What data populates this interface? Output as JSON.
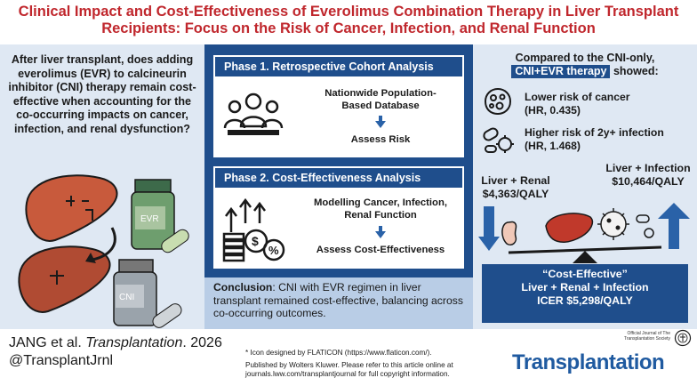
{
  "title": {
    "line1": "Clinical Impact and Cost-Effectiveness of Everolimus Combination Therapy in Liver Transplant",
    "line2": "Recipients: Focus on the Risk of Cancer, Infection, and Renal Function"
  },
  "left_panel": {
    "question": "After liver transplant, does adding everolimus (EVR) to calcineurin inhibitor (CNI) therapy remain cost-effective when accounting for the co-occurring impacts on cancer, infection, and renal dysfunction?",
    "bottle1_label": "EVR",
    "bottle2_label": "CNI"
  },
  "phase1": {
    "header": "Phase 1. Retrospective Cohort Analysis",
    "step1_line1": "Nationwide Population-",
    "step1_line2": "Based Database",
    "step2": "Assess Risk"
  },
  "phase2": {
    "header": "Phase 2. Cost-Effectiveness Analysis",
    "step1_line1": "Modelling Cancer, Infection,",
    "step1_line2": "Renal Function",
    "step2": "Assess Cost-Effectiveness"
  },
  "conclusion": {
    "label": "Conclusion",
    "text": ": CNI with EVR regimen in liver transplant remained cost-effective, balancing across co-occurring outcomes."
  },
  "right_panel": {
    "head_line1": "Compared to the CNI-only,",
    "head_tag": "CNI+EVR therapy",
    "head_suffix": " showed:",
    "cancer_line1": "Lower risk of cancer",
    "cancer_line2": "(HR, 0.435)",
    "infection_line1": "Higher risk of 2y+ infection",
    "infection_line2": "(HR, 1.468)",
    "renal_label": "Liver + Renal",
    "renal_value": "$4,363/QALY",
    "infection_label": "Liver + Infection",
    "infection_value": "$10,464/QALY",
    "verdict_line1": "“Cost-Effective”",
    "verdict_line2": "Liver + Renal + Infection",
    "verdict_line3": "ICER $5,298/QALY"
  },
  "footer": {
    "citation_authors": "JANG et al. ",
    "citation_journal": "Transplantation",
    "citation_year": ". 2026",
    "handle": "@TransplantJrnl",
    "icon_credit": "* Icon designed by FLATICON (https://www.flaticon.com/).",
    "publisher_line1": "Published by Wolters Kluwer. Please refer to this article online at",
    "publisher_line2": "journals.lww.com/transplantjournal for full copyright information.",
    "journal_name": "Transplantation",
    "official_text": "Official Journal of The Transplantation Society"
  },
  "colors": {
    "title_red": "#c0272d",
    "navy": "#1f4e8c",
    "light_blue": "#dfe8f3",
    "conclusion_blue": "#b9cde6",
    "accent_arrow": "#2a62a8"
  }
}
